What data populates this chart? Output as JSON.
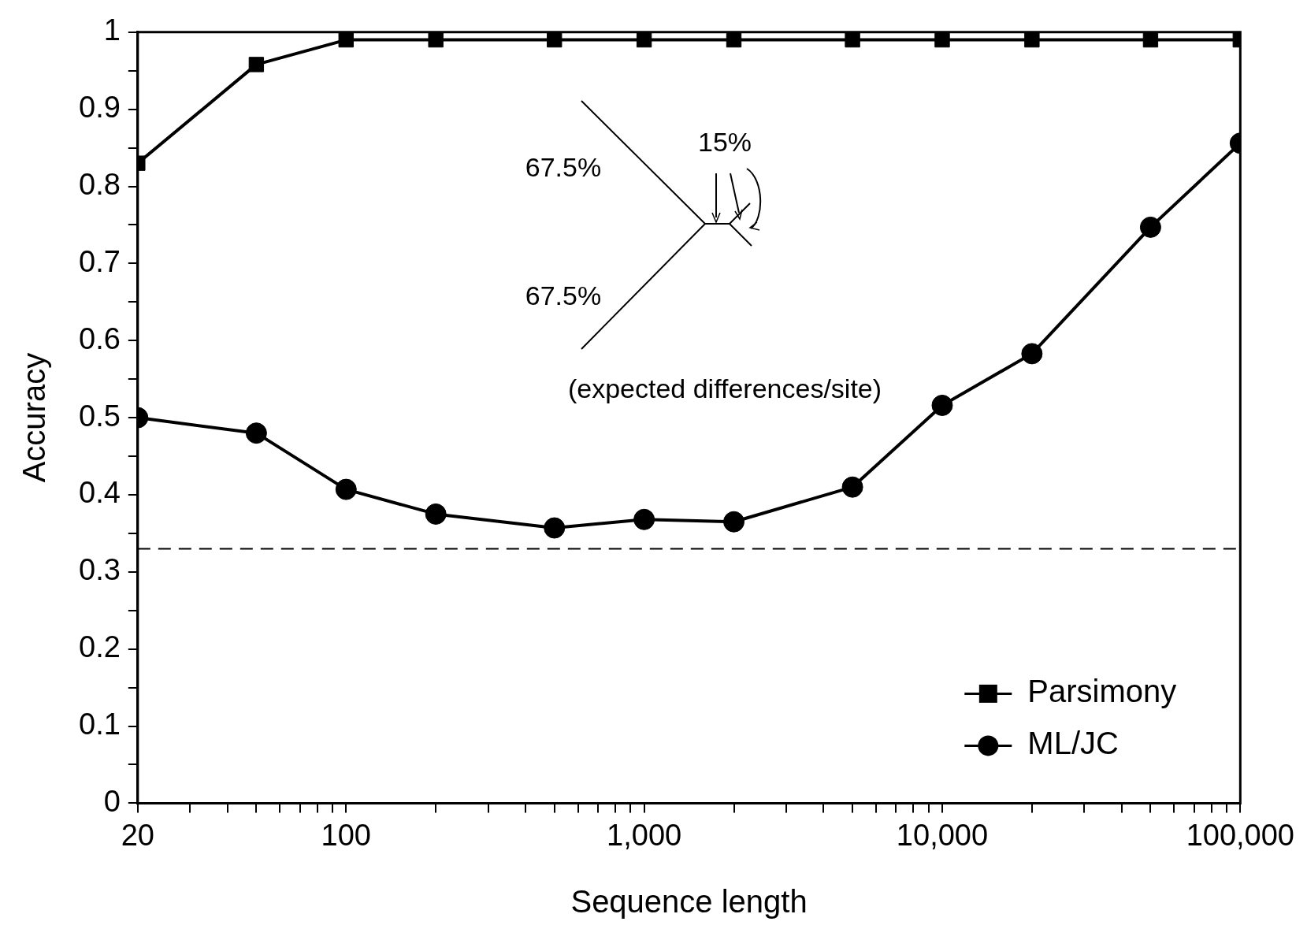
{
  "chart_data": {
    "type": "line",
    "xlabel": "Sequence length",
    "ylabel": "Accuracy",
    "log": "x",
    "xlim": [
      20,
      100000
    ],
    "xticks": [
      20,
      {
        "value": 30,
        "label": null
      },
      {
        "value": 40,
        "label": null
      },
      {
        "value": 50,
        "label": null
      },
      {
        "value": 60,
        "label": null
      },
      {
        "value": 70,
        "label": null
      },
      {
        "value": 80,
        "label": null
      },
      {
        "value": 90,
        "label": null
      },
      100,
      {
        "value": 200,
        "label": null
      },
      {
        "value": 300,
        "label": null
      },
      {
        "value": 400,
        "label": null
      },
      {
        "value": 500,
        "label": null
      },
      {
        "value": 600,
        "label": null
      },
      {
        "value": 700,
        "label": null
      },
      {
        "value": 800,
        "label": null
      },
      {
        "value": 900,
        "label": null
      },
      {
        "value": 1000,
        "label": "1,000"
      },
      {
        "value": 2000,
        "label": null
      },
      {
        "value": 3000,
        "label": null
      },
      {
        "value": 4000,
        "label": null
      },
      {
        "value": 5000,
        "label": null
      },
      {
        "value": 6000,
        "label": null
      },
      {
        "value": 7000,
        "label": null
      },
      {
        "value": 8000,
        "label": null
      },
      {
        "value": 9000,
        "label": null
      },
      {
        "value": 10000,
        "label": "10,000"
      },
      {
        "value": 20000,
        "label": null
      },
      {
        "value": 30000,
        "label": null
      },
      {
        "value": 40000,
        "label": null
      },
      {
        "value": 50000,
        "label": null
      },
      {
        "value": 60000,
        "label": null
      },
      {
        "value": 70000,
        "label": null
      },
      {
        "value": 80000,
        "label": null
      },
      {
        "value": 90000,
        "label": null
      },
      {
        "value": 100000,
        "label": "100,000"
      }
    ],
    "ylim": [
      0,
      1
    ],
    "yticks": [
      0,
      {
        "value": 0.05,
        "label": null
      },
      0.1,
      {
        "value": 0.15,
        "label": null
      },
      0.2,
      {
        "value": 0.25,
        "label": null
      },
      0.3,
      {
        "value": 0.35,
        "label": null
      },
      0.4,
      {
        "value": 0.45,
        "label": null
      },
      0.5,
      {
        "value": 0.55,
        "label": null
      },
      0.6,
      {
        "value": 0.65,
        "label": null
      },
      0.7,
      {
        "value": 0.75,
        "label": null
      },
      0.8,
      {
        "value": 0.85,
        "label": null
      },
      0.9,
      {
        "value": 0.95,
        "label": null
      },
      1
    ],
    "x": [
      20,
      50,
      100,
      200,
      500,
      1000,
      2000,
      5000,
      10000,
      20000,
      50000,
      100000
    ],
    "series": [
      {
        "name": "Parsimony",
        "color": "#000000",
        "marker": "square",
        "values": [
          0.83,
          0.958,
          0.99,
          0.99,
          0.99,
          0.99,
          0.99,
          0.99,
          0.99,
          0.99,
          0.99,
          0.99
        ]
      },
      {
        "name": "ML/JC",
        "color": "#000000",
        "marker": "circle",
        "values": [
          0.5,
          0.48,
          0.407,
          0.375,
          0.357,
          0.368,
          0.365,
          0.41,
          0.516,
          0.583,
          0.747,
          0.856
        ]
      }
    ],
    "ref_lines": [
      {
        "axis": "y",
        "value": 0.33,
        "line_style": "dashed",
        "color": "#000000"
      }
    ],
    "annotations": [
      "67.5%",
      "67.5%",
      "15%",
      "(expected differences/site)"
    ],
    "grid": false,
    "legend": "bottom right",
    "line_style": "solid"
  }
}
